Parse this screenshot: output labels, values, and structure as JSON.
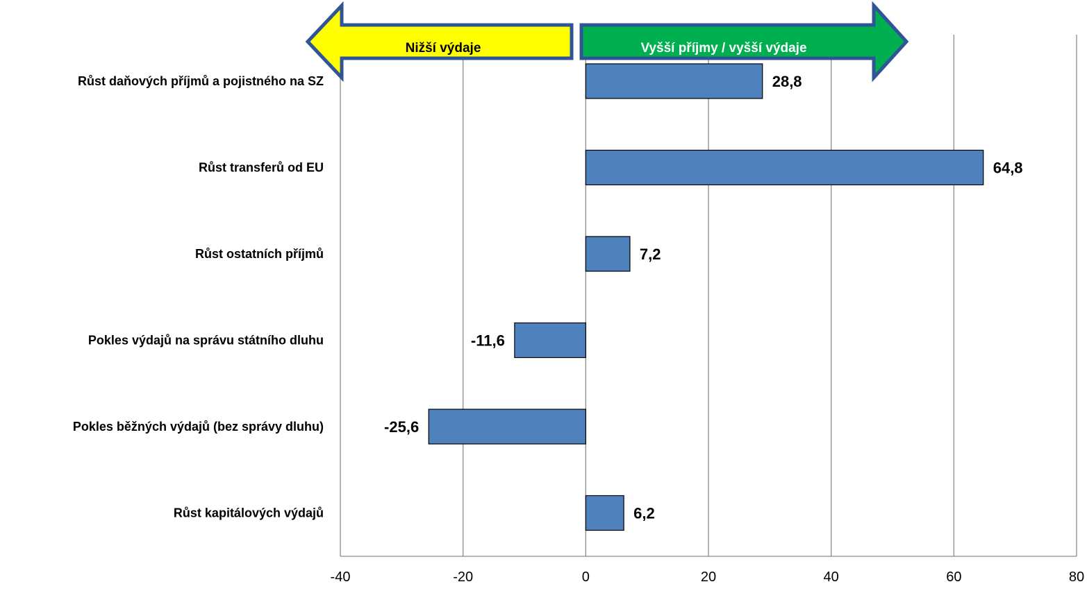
{
  "chart_data": {
    "type": "bar",
    "orientation": "horizontal",
    "title": "",
    "categories": [
      "Růst daňových příjmů a pojistného na SZ",
      "Růst transferů od EU",
      "Růst ostatních příjmů",
      "Pokles výdajů na správu státního dluhu",
      "Pokles běžných výdajů (bez správy dluhu)",
      "Růst kapitálových výdajů"
    ],
    "values": [
      28.8,
      64.8,
      7.2,
      -11.6,
      -25.6,
      6.2
    ],
    "value_labels": [
      "28,8",
      "64,8",
      "7,2",
      "-11,6",
      "-25,6",
      "6,2"
    ],
    "xlim": [
      -40,
      80
    ],
    "x_ticks": [
      -40,
      -20,
      0,
      20,
      40,
      60,
      80
    ],
    "x_tick_labels": [
      "-40",
      "-20",
      "0",
      "20",
      "40",
      "60",
      "80"
    ],
    "grid": true,
    "bar_color": "#4f81bd",
    "xlabel": "",
    "ylabel": ""
  },
  "annotations": {
    "left_arrow": {
      "label": "Nižší výdaje",
      "fill": "#ffff00",
      "text_color": "#000000"
    },
    "right_arrow": {
      "label": "Vyšší příjmy / vyšší výdaje",
      "fill": "#00b050",
      "text_color": "#ffffff"
    },
    "border_color": "#2f5597"
  }
}
